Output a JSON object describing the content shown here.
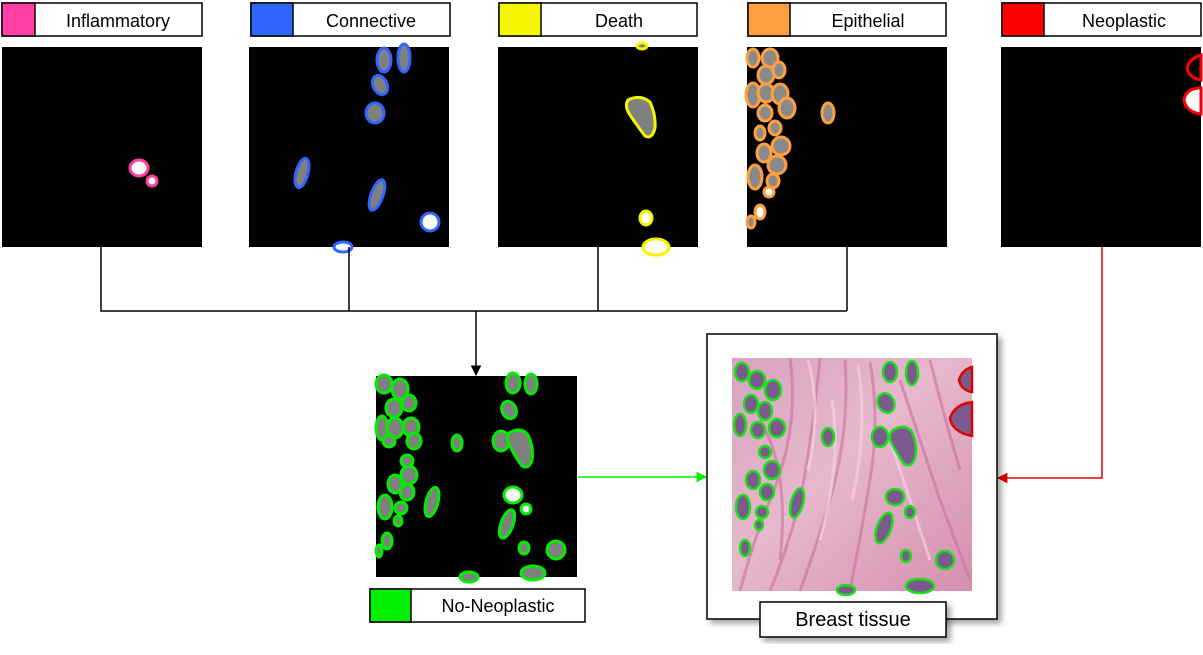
{
  "classes": [
    {
      "id": "inflammatory",
      "label": "Inflammatory",
      "color": "#ff3fa4"
    },
    {
      "id": "connective",
      "label": "Connective",
      "color": "#2f66ff"
    },
    {
      "id": "death",
      "label": "Death",
      "color": "#f5f500"
    },
    {
      "id": "epithelial",
      "label": "Epithelial",
      "color": "#ffa040"
    },
    {
      "id": "neoplastic",
      "label": "Neoplastic",
      "color": "#ff0000"
    }
  ],
  "merged": {
    "label": "No-Neoplastic",
    "color": "#00ee00"
  },
  "tissue": {
    "label": "Breast tissue"
  },
  "connector_colors": {
    "merge": "#000000",
    "green": "#00ee00",
    "red": "#e00000"
  }
}
